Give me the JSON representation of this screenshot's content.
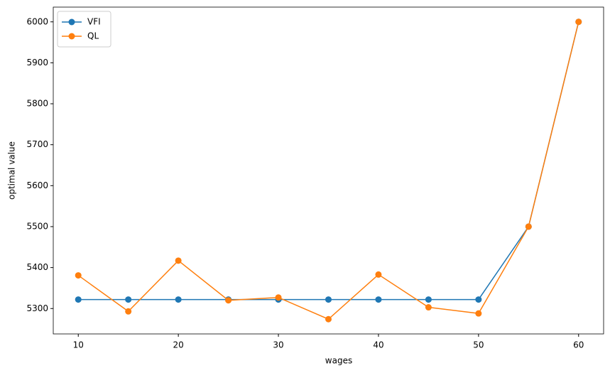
{
  "chart_data": {
    "type": "line",
    "x_label": "wages",
    "y_label": "optimal value",
    "x": [
      10,
      15,
      20,
      25,
      30,
      35,
      40,
      45,
      50,
      55,
      60
    ],
    "series": [
      {
        "name": "VFI",
        "color": "#1f77b4",
        "values": [
          5322,
          5322,
          5322,
          5322,
          5322,
          5322,
          5322,
          5322,
          5322,
          5500,
          6000
        ]
      },
      {
        "name": "QL",
        "color": "#ff7f0e",
        "values": [
          5381,
          5293,
          5417,
          5320,
          5327,
          5274,
          5383,
          5303,
          5288,
          5500,
          6000
        ]
      }
    ],
    "xlim": [
      7.5,
      62.5
    ],
    "xticks": [
      10,
      20,
      30,
      40,
      50,
      60
    ],
    "ylim": [
      5238,
      6036
    ],
    "yticks": [
      5300,
      5400,
      5500,
      5600,
      5700,
      5800,
      5900,
      6000
    ],
    "legend": "upper-left",
    "marker": "circle"
  }
}
